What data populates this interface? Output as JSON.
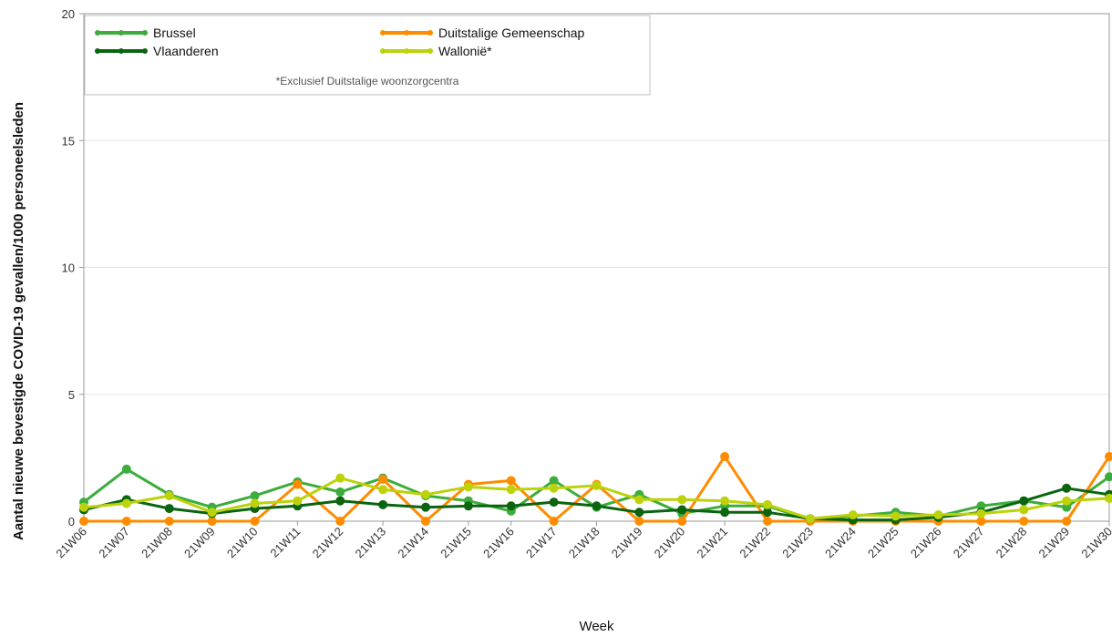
{
  "chart_data": {
    "type": "line",
    "title": "",
    "xlabel": "Week",
    "ylabel": "Aantal nieuwe bevestigde COVID-19 gevallen/1000 personeelsleden",
    "ylim": [
      0,
      20
    ],
    "yticks": [
      "0",
      "5",
      "10",
      "15",
      "20"
    ],
    "grid": true,
    "legend_position": "top-left",
    "legend_note": "*Exclusief Duitstalige woonzorgcentra",
    "categories": [
      "21W06",
      "21W07",
      "21W08",
      "21W09",
      "21W10",
      "21W11",
      "21W12",
      "21W13",
      "21W14",
      "21W15",
      "21W16",
      "21W17",
      "21W18",
      "21W19",
      "21W20",
      "21W21",
      "21W22",
      "21W23",
      "21W24",
      "21W25",
      "21W26",
      "21W27",
      "21W28",
      "21W29",
      "21W30"
    ],
    "series": [
      {
        "name": "Brussel",
        "color": "#3cac3c",
        "values": [
          0.75,
          2.05,
          1.05,
          0.55,
          1.0,
          1.55,
          1.15,
          1.7,
          1.0,
          0.8,
          0.4,
          1.6,
          0.55,
          1.05,
          0.3,
          0.6,
          0.6,
          0.05,
          0.2,
          0.35,
          0.2,
          0.6,
          0.8,
          0.55,
          1.75
        ]
      },
      {
        "name": "Duitstalige Gemeenschap",
        "color": "#ff8c00",
        "values": [
          0,
          0,
          0,
          0,
          0,
          1.45,
          0,
          1.65,
          0,
          1.45,
          1.6,
          0,
          1.45,
          0,
          0,
          2.55,
          0,
          0,
          0,
          0,
          0,
          0,
          0,
          0,
          2.55
        ]
      },
      {
        "name": "Vlaanderen",
        "color": "#0a6410",
        "values": [
          0.45,
          0.85,
          0.5,
          0.3,
          0.5,
          0.6,
          0.8,
          0.65,
          0.55,
          0.6,
          0.6,
          0.75,
          0.6,
          0.35,
          0.45,
          0.35,
          0.35,
          0.1,
          0.05,
          0.05,
          0.15,
          0.35,
          0.8,
          1.3,
          1.05
        ]
      },
      {
        "name": "Wallonië*",
        "color": "#bcd20a",
        "values": [
          0.55,
          0.7,
          1.0,
          0.35,
          0.7,
          0.8,
          1.7,
          1.25,
          1.05,
          1.35,
          1.25,
          1.3,
          1.4,
          0.85,
          0.85,
          0.8,
          0.65,
          0.1,
          0.25,
          0.2,
          0.25,
          0.3,
          0.45,
          0.8,
          0.9
        ]
      }
    ]
  }
}
